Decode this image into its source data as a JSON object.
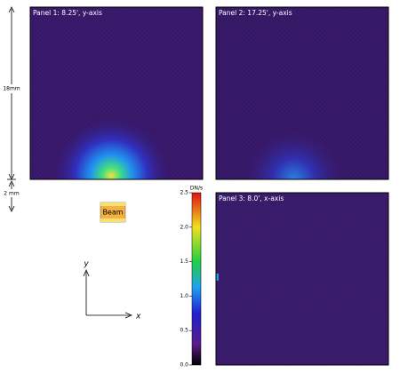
{
  "panels": [
    {
      "title": "Panel 1: 8.25', y-axis"
    },
    {
      "title": "Panel 2: 17.25', y-axis"
    },
    {
      "title": "Panel 3: 8.0', x-axis"
    }
  ],
  "colorbar": {
    "title": "DN/s",
    "lim": [
      0,
      2.5
    ],
    "ticks": [
      {
        "value": 0,
        "label": "0.0"
      },
      {
        "value": 0.5,
        "label": "0.5"
      },
      {
        "value": 1,
        "label": "1.0"
      },
      {
        "value": 1.5,
        "label": "1.5"
      },
      {
        "value": 2,
        "label": "2.0"
      },
      {
        "value": 2.5,
        "label": "2.5"
      }
    ]
  },
  "scale": {
    "large": "18mm",
    "small": "2 mm"
  },
  "beam": {
    "label": "Beam"
  },
  "axes": {
    "x": "x",
    "y": "y"
  }
}
